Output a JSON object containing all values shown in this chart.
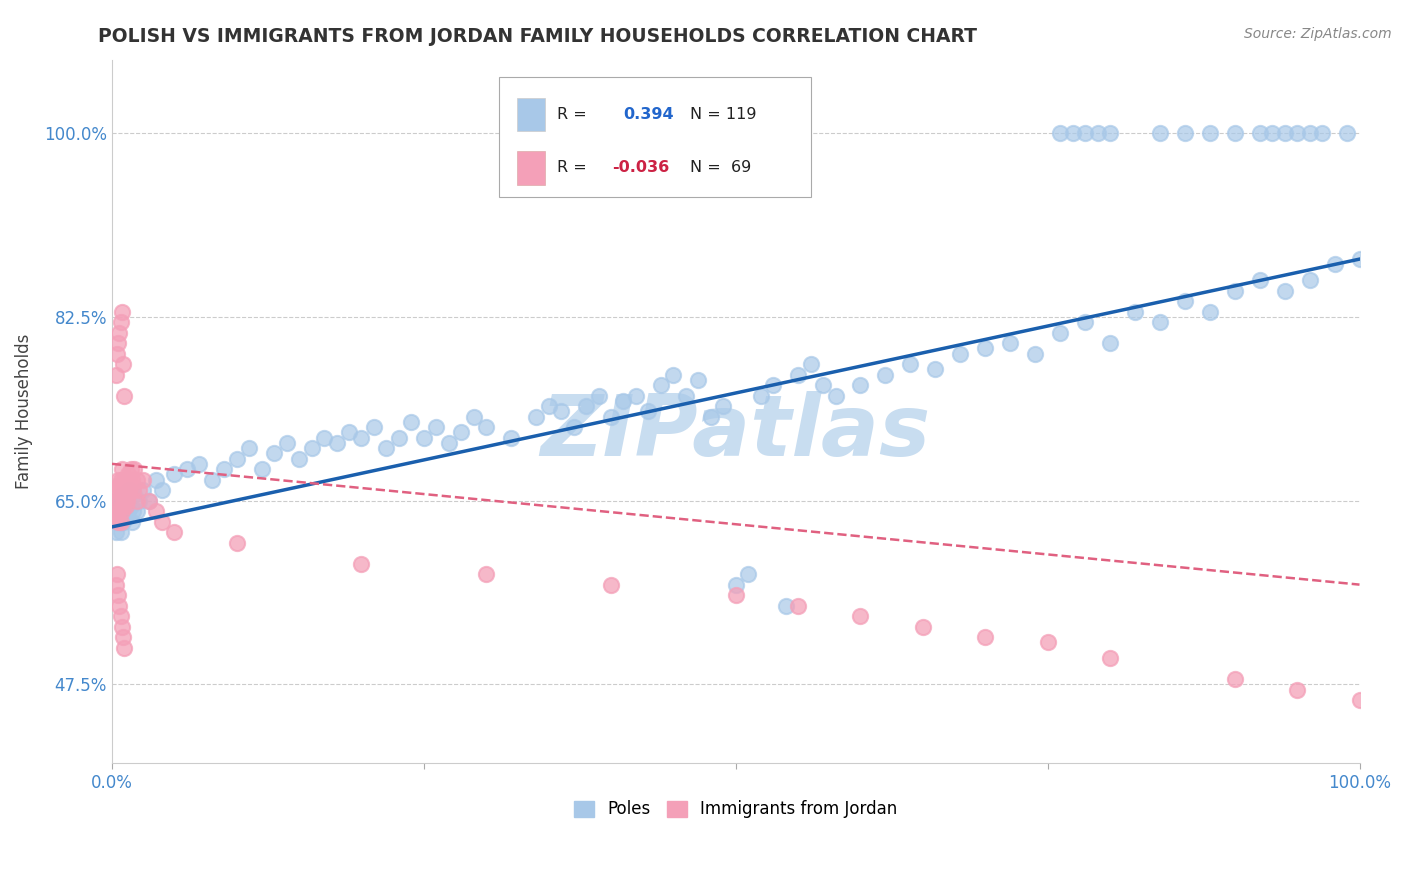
{
  "title": "POLISH VS IMMIGRANTS FROM JORDAN FAMILY HOUSEHOLDS CORRELATION CHART",
  "source": "Source: ZipAtlas.com",
  "ylabel": "Family Households",
  "xlim": [
    0.0,
    100.0
  ],
  "ylim": [
    40.0,
    107.0
  ],
  "yticks": [
    47.5,
    65.0,
    82.5,
    100.0
  ],
  "ytick_labels": [
    "47.5%",
    "65.0%",
    "82.5%",
    "100.0%"
  ],
  "xtick_labels": [
    "0.0%",
    "",
    "",
    "",
    "100.0%"
  ],
  "color_poles": "#a8c8e8",
  "color_jordan": "#f4a0b8",
  "color_line_poles": "#1a5fad",
  "color_line_jordan": "#e06080",
  "marker_size": 120,
  "watermark": "ZIPatlas",
  "watermark_color": "#c8ddf0",
  "background_color": "#ffffff",
  "grid_color": "#cccccc",
  "poles_line_start_y": 62.5,
  "poles_line_end_y": 88.0,
  "jordan_line_start_y": 68.5,
  "jordan_line_end_y": 57.0,
  "poles_x": [
    0.3,
    0.4,
    0.5,
    0.5,
    0.6,
    0.6,
    0.7,
    0.7,
    0.7,
    0.8,
    0.8,
    0.9,
    0.9,
    1.0,
    1.0,
    1.1,
    1.1,
    1.2,
    1.3,
    1.4,
    1.5,
    1.6,
    1.7,
    1.8,
    2.0,
    2.2,
    2.5,
    3.0,
    3.5,
    4.0,
    5.0,
    6.0,
    7.0,
    8.0,
    9.0,
    10.0,
    11.0,
    12.0,
    13.0,
    14.0,
    15.0,
    16.0,
    17.0,
    18.0,
    19.0,
    20.0,
    21.0,
    22.0,
    23.0,
    24.0,
    25.0,
    26.0,
    27.0,
    28.0,
    29.0,
    30.0,
    32.0,
    34.0,
    35.0,
    36.0,
    37.0,
    38.0,
    39.0,
    40.0,
    41.0,
    42.0,
    43.0,
    44.0,
    45.0,
    46.0,
    47.0,
    48.0,
    49.0,
    50.0,
    51.0,
    52.0,
    53.0,
    54.0,
    55.0,
    56.0,
    57.0,
    58.0,
    60.0,
    62.0,
    64.0,
    66.0,
    68.0,
    70.0,
    72.0,
    74.0,
    76.0,
    78.0,
    80.0,
    82.0,
    84.0,
    86.0,
    88.0,
    90.0,
    92.0,
    94.0,
    96.0,
    98.0,
    100.0,
    76.0,
    77.0,
    78.0,
    79.0,
    80.0,
    84.0,
    86.0,
    88.0,
    90.0,
    92.0,
    93.0,
    94.0,
    95.0,
    96.0,
    97.0,
    99.0
  ],
  "poles_y": [
    62.0,
    63.0,
    64.0,
    65.0,
    63.5,
    64.5,
    62.0,
    63.5,
    65.0,
    63.0,
    65.5,
    64.0,
    63.0,
    64.0,
    65.5,
    63.5,
    64.5,
    65.0,
    64.0,
    66.0,
    64.5,
    63.0,
    64.0,
    65.5,
    64.0,
    65.0,
    66.0,
    65.0,
    67.0,
    66.0,
    67.5,
    68.0,
    68.5,
    67.0,
    68.0,
    69.0,
    70.0,
    68.0,
    69.5,
    70.5,
    69.0,
    70.0,
    71.0,
    70.5,
    71.5,
    71.0,
    72.0,
    70.0,
    71.0,
    72.5,
    71.0,
    72.0,
    70.5,
    71.5,
    73.0,
    72.0,
    71.0,
    73.0,
    74.0,
    73.5,
    72.0,
    74.0,
    75.0,
    73.0,
    74.5,
    75.0,
    73.5,
    76.0,
    77.0,
    75.0,
    76.5,
    73.0,
    74.0,
    57.0,
    58.0,
    75.0,
    76.0,
    55.0,
    77.0,
    78.0,
    76.0,
    75.0,
    76.0,
    77.0,
    78.0,
    77.5,
    79.0,
    79.5,
    80.0,
    79.0,
    81.0,
    82.0,
    80.0,
    83.0,
    82.0,
    84.0,
    83.0,
    85.0,
    86.0,
    85.0,
    86.0,
    87.5,
    88.0,
    100.0,
    100.0,
    100.0,
    100.0,
    100.0,
    100.0,
    100.0,
    100.0,
    100.0,
    100.0,
    100.0,
    100.0,
    100.0,
    100.0,
    100.0,
    100.0
  ],
  "jordan_x": [
    0.2,
    0.3,
    0.3,
    0.4,
    0.4,
    0.4,
    0.5,
    0.5,
    0.5,
    0.5,
    0.6,
    0.6,
    0.6,
    0.7,
    0.7,
    0.7,
    0.7,
    0.8,
    0.8,
    0.8,
    0.8,
    0.9,
    0.9,
    0.9,
    1.0,
    1.0,
    1.0,
    1.1,
    1.1,
    1.2,
    1.2,
    1.3,
    1.3,
    1.4,
    1.5,
    1.5,
    1.6,
    1.7,
    1.8,
    2.0,
    2.0,
    2.2,
    2.5,
    3.0,
    3.5,
    4.0,
    5.0,
    10.0,
    20.0,
    30.0,
    40.0,
    50.0,
    55.0,
    60.0,
    65.0,
    70.0,
    75.0,
    80.0,
    90.0,
    95.0,
    100.0,
    0.3,
    0.4,
    0.5,
    0.6,
    0.7,
    0.8,
    0.9,
    1.0
  ],
  "jordan_y": [
    64.0,
    65.5,
    77.0,
    63.5,
    66.0,
    79.0,
    63.0,
    65.0,
    67.0,
    80.0,
    64.0,
    66.5,
    81.0,
    63.0,
    65.5,
    67.0,
    82.0,
    64.0,
    66.0,
    68.0,
    83.0,
    64.5,
    66.0,
    78.0,
    65.0,
    67.0,
    75.0,
    64.5,
    66.5,
    65.0,
    67.0,
    65.5,
    67.5,
    66.0,
    66.5,
    68.0,
    67.0,
    66.0,
    68.0,
    67.0,
    65.0,
    66.0,
    67.0,
    65.0,
    64.0,
    63.0,
    62.0,
    61.0,
    59.0,
    58.0,
    57.0,
    56.0,
    55.0,
    54.0,
    53.0,
    52.0,
    51.5,
    50.0,
    48.0,
    47.0,
    46.0,
    57.0,
    58.0,
    56.0,
    55.0,
    54.0,
    53.0,
    52.0,
    51.0
  ]
}
